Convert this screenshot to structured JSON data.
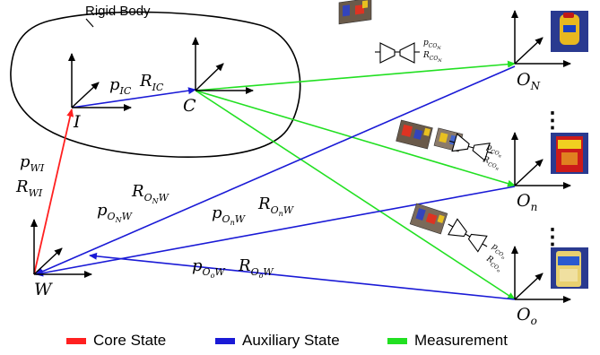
{
  "title": "Rigid Body",
  "frames": {
    "I": "I",
    "C": "C",
    "W": "W",
    "O_N": {
      "base": "O",
      "sub": "N"
    },
    "O_n": {
      "base": "O",
      "sub": "n"
    },
    "O_o": {
      "base": "O",
      "sub": "o"
    }
  },
  "labels": {
    "p_IC": {
      "base": "p",
      "sub": "IC"
    },
    "R_IC": {
      "base": "R",
      "sub": "IC"
    },
    "p_WI": {
      "base": "p",
      "sub": "WI"
    },
    "R_WI": {
      "base": "R",
      "sub": "WI"
    },
    "p_ONW": {
      "base": "p",
      "sub": "O",
      "subsub": "N",
      "tail": "W"
    },
    "R_ONW": {
      "base": "R",
      "sub": "O",
      "subsub": "N",
      "tail": "W"
    },
    "p_OnW": {
      "base": "p",
      "sub": "O",
      "subsub": "n",
      "tail": "W"
    },
    "R_OnW": {
      "base": "R",
      "sub": "O",
      "subsub": "n",
      "tail": "W"
    },
    "p_OoW": {
      "base": "p",
      "sub": "O",
      "subsub": "o",
      "tail": "W"
    },
    "R_OoW": {
      "base": "R",
      "sub": "O",
      "subsub": "o",
      "tail": "W"
    },
    "p_CON": {
      "base": "p",
      "sub": "CO",
      "subsub": "N"
    },
    "R_CON": {
      "base": "R",
      "sub": "CO",
      "subsub": "N"
    },
    "p_COn": {
      "base": "p",
      "sub": "CO",
      "subsub": "n"
    },
    "R_COn": {
      "base": "R",
      "sub": "CO",
      "subsub": "n"
    },
    "p_COo": {
      "base": "p",
      "sub": "CO",
      "subsub": "o"
    },
    "R_COo": {
      "base": "R",
      "sub": "CO",
      "subsub": "o"
    }
  },
  "ellipsis": "⋮",
  "legend": [
    {
      "label": "Core State",
      "color": "#ff2020"
    },
    {
      "label": "Auxiliary State",
      "color": "#1a1ad6"
    },
    {
      "label": "Measurement",
      "color": "#22e022"
    }
  ],
  "colors": {
    "core": "#ff2020",
    "auxiliary": "#1a1ad6",
    "measurement": "#22e022",
    "axes": "#000000"
  },
  "icons": [
    "camera-image-icon",
    "encoder-network-icon",
    "object-image-icon"
  ]
}
